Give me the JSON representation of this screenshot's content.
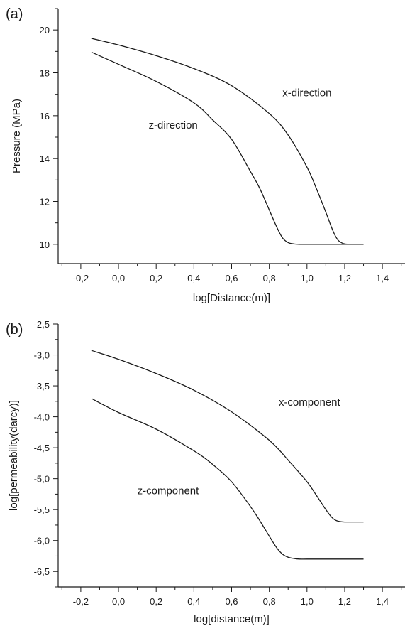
{
  "chart_data": [
    {
      "type": "line",
      "panel_label": "(a)",
      "title": "",
      "xlabel": "log[Distance(m)]",
      "ylabel": "Pressure (MPa)",
      "xlim": [
        -0.32,
        1.52
      ],
      "ylim": [
        9.1,
        21
      ],
      "x_ticks": [
        -0.2,
        0.0,
        0.2,
        0.4,
        0.6,
        0.8,
        1.0,
        1.2,
        1.4
      ],
      "x_tick_labels": [
        "-0,2",
        "0,0",
        "0,2",
        "0,4",
        "0,6",
        "0,8",
        "1,0",
        "1,2",
        "1,4"
      ],
      "y_ticks": [
        10,
        12,
        14,
        16,
        18,
        20
      ],
      "y_tick_labels": [
        "10",
        "12",
        "14",
        "16",
        "18",
        "20"
      ],
      "grid": false,
      "series": [
        {
          "label": "x-direction",
          "label_at": [
            0.87,
            16.9
          ],
          "x": [
            -0.14,
            0.0,
            0.2,
            0.4,
            0.6,
            0.8,
            0.9,
            1.0,
            1.05,
            1.1,
            1.13,
            1.15,
            1.17,
            1.2,
            1.25,
            1.3
          ],
          "y": [
            19.6,
            19.3,
            18.8,
            18.2,
            17.4,
            16.1,
            15.1,
            13.6,
            12.6,
            11.5,
            10.8,
            10.4,
            10.15,
            10.02,
            10.0,
            10.0
          ]
        },
        {
          "label": "z-direction",
          "label_at": [
            0.16,
            15.4
          ],
          "x": [
            -0.14,
            0.0,
            0.2,
            0.4,
            0.5,
            0.6,
            0.7,
            0.75,
            0.8,
            0.84,
            0.87,
            0.9,
            0.93,
            0.96,
            1.0,
            1.1,
            1.2,
            1.3
          ],
          "y": [
            18.95,
            18.4,
            17.6,
            16.6,
            15.8,
            14.9,
            13.4,
            12.6,
            11.6,
            10.8,
            10.3,
            10.08,
            10.02,
            10.0,
            10.0,
            10.0,
            10.0,
            10.0
          ]
        }
      ]
    },
    {
      "type": "line",
      "panel_label": "(b)",
      "title": "",
      "xlabel": "log[distance(m)]",
      "ylabel": "log[permeability(darcy)]",
      "xlim": [
        -0.32,
        1.52
      ],
      "ylim": [
        -6.75,
        -2.5
      ],
      "x_ticks": [
        -0.2,
        0.0,
        0.2,
        0.4,
        0.6,
        0.8,
        1.0,
        1.2,
        1.4
      ],
      "x_tick_labels": [
        "-0,2",
        "0,0",
        "0,2",
        "0,4",
        "0,6",
        "0,8",
        "1,0",
        "1,2",
        "1,4"
      ],
      "y_ticks": [
        -6.5,
        -6.0,
        -5.5,
        -5.0,
        -4.5,
        -4.0,
        -3.5,
        -3.0,
        -2.5
      ],
      "y_tick_labels": [
        "-6,5",
        "-6,0",
        "-5,5",
        "-5,0",
        "-4,5",
        "-4,0",
        "-3,5",
        "-3,0",
        "-2,5"
      ],
      "grid": false,
      "series": [
        {
          "label": "x-component",
          "label_at": [
            0.85,
            -3.82
          ],
          "x": [
            -0.14,
            0.0,
            0.2,
            0.4,
            0.6,
            0.8,
            0.9,
            1.0,
            1.05,
            1.1,
            1.13,
            1.15,
            1.17,
            1.2,
            1.25,
            1.3
          ],
          "y": [
            -2.93,
            -3.07,
            -3.3,
            -3.57,
            -3.92,
            -4.38,
            -4.7,
            -5.05,
            -5.27,
            -5.5,
            -5.62,
            -5.67,
            -5.69,
            -5.7,
            -5.7,
            -5.7
          ]
        },
        {
          "label": "z-component",
          "label_at": [
            0.1,
            -5.25
          ],
          "x": [
            -0.14,
            0.0,
            0.2,
            0.4,
            0.5,
            0.6,
            0.7,
            0.75,
            0.8,
            0.84,
            0.87,
            0.9,
            0.93,
            0.96,
            1.0,
            1.1,
            1.2,
            1.3
          ],
          "y": [
            -3.71,
            -3.93,
            -4.2,
            -4.55,
            -4.77,
            -5.05,
            -5.45,
            -5.68,
            -5.93,
            -6.12,
            -6.22,
            -6.27,
            -6.29,
            -6.3,
            -6.3,
            -6.3,
            -6.3,
            -6.3
          ]
        }
      ]
    }
  ]
}
